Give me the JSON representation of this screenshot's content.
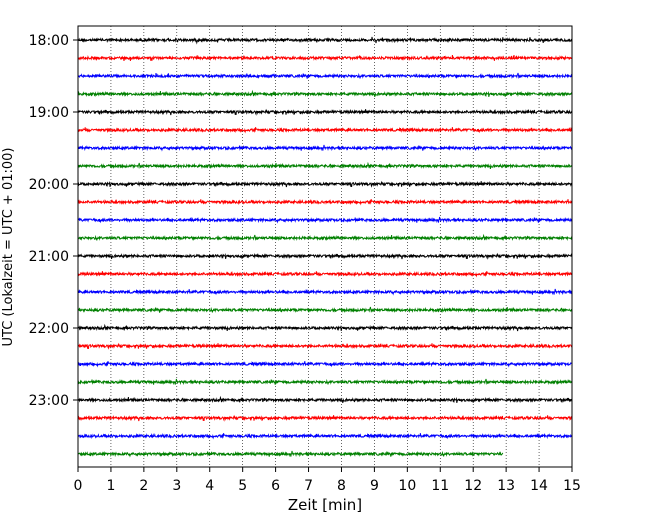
{
  "chart_data": {
    "type": "line",
    "title": "",
    "xlabel": "Zeit  [min]",
    "ylabel": "UTC (Lokalzeit = UTC + 01:00)",
    "xlim": [
      0,
      15
    ],
    "x_ticks": [
      "0",
      "1",
      "2",
      "3",
      "4",
      "5",
      "6",
      "7",
      "8",
      "9",
      "10",
      "11",
      "12",
      "13",
      "14",
      "15"
    ],
    "y_ticks": [
      "18:00",
      "19:00",
      "20:00",
      "21:00",
      "22:00",
      "23:00"
    ],
    "grid": "vertical-dotted",
    "trace_interval_min": 15,
    "series_colors": [
      "#000000",
      "#ff0000",
      "#0000ff",
      "#008000"
    ],
    "traces": [
      {
        "start": "18:00",
        "end_min": 15
      },
      {
        "start": "18:15",
        "end_min": 15
      },
      {
        "start": "18:30",
        "end_min": 15
      },
      {
        "start": "18:45",
        "end_min": 15
      },
      {
        "start": "19:00",
        "end_min": 15
      },
      {
        "start": "19:15",
        "end_min": 15
      },
      {
        "start": "19:30",
        "end_min": 15
      },
      {
        "start": "19:45",
        "end_min": 15
      },
      {
        "start": "20:00",
        "end_min": 15
      },
      {
        "start": "20:15",
        "end_min": 15
      },
      {
        "start": "20:30",
        "end_min": 15
      },
      {
        "start": "20:45",
        "end_min": 15
      },
      {
        "start": "21:00",
        "end_min": 15
      },
      {
        "start": "21:15",
        "end_min": 15
      },
      {
        "start": "21:30",
        "end_min": 15
      },
      {
        "start": "21:45",
        "end_min": 15
      },
      {
        "start": "22:00",
        "end_min": 15
      },
      {
        "start": "22:15",
        "end_min": 15
      },
      {
        "start": "22:30",
        "end_min": 15
      },
      {
        "start": "22:45",
        "end_min": 15
      },
      {
        "start": "23:00",
        "end_min": 15
      },
      {
        "start": "23:15",
        "end_min": 15
      },
      {
        "start": "23:30",
        "end_min": 15
      },
      {
        "start": "23:45",
        "end_min": 12.9
      }
    ]
  }
}
